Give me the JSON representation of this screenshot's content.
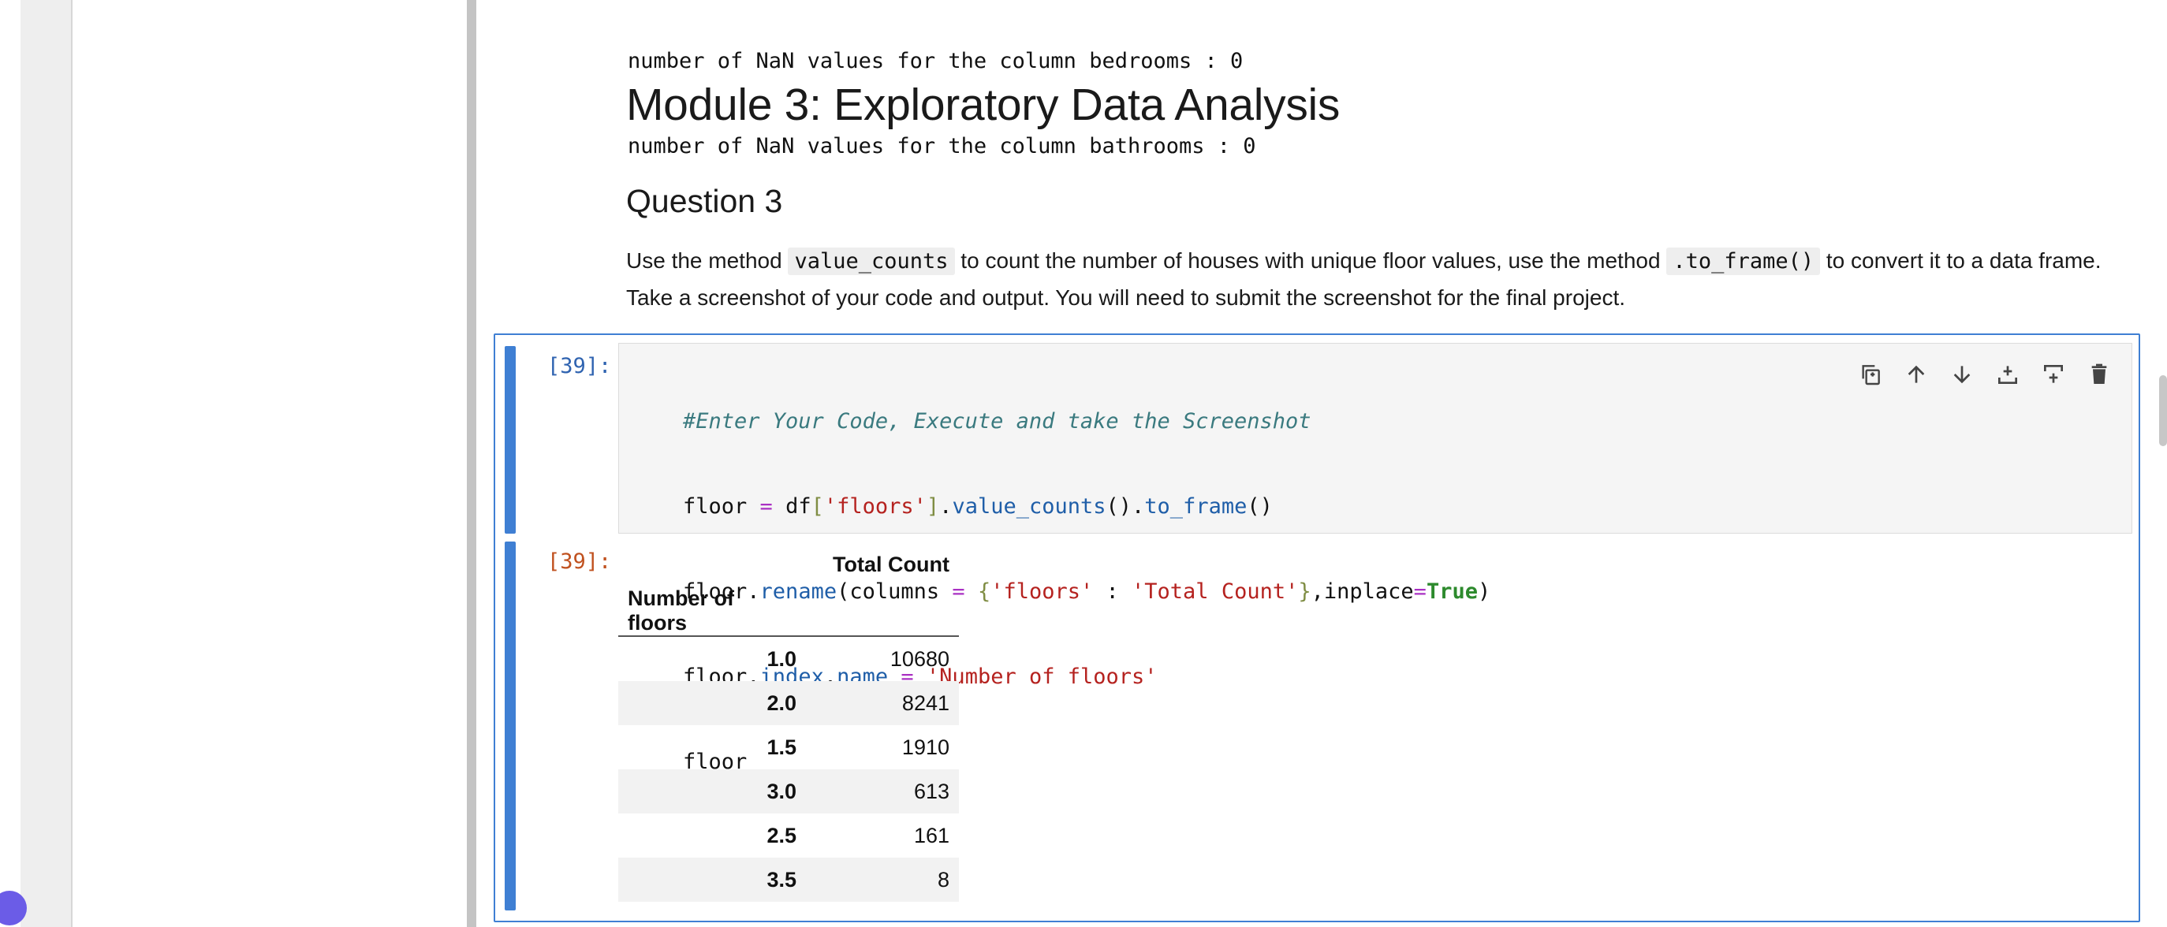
{
  "previous_output": {
    "lines": [
      "number of NaN values for the column bedrooms : 0",
      "number of NaN values for the column bathrooms : 0"
    ]
  },
  "markdown": {
    "module_heading": "Module 3: Exploratory Data Analysis",
    "question_heading": "Question 3",
    "instructions": {
      "part1": "Use the method ",
      "code1": "value_counts",
      "part2": " to count the number of houses with unique floor values, use the method ",
      "code2": ".to_frame()",
      "part3": " to convert it to a data frame. Take a screenshot of your code and output. You will need to submit the screenshot for the final project."
    }
  },
  "cell": {
    "input_prompt": "[39]:",
    "output_prompt": "[39]:",
    "code": {
      "line1_comment": "#Enter Your Code, Execute and take the Screenshot",
      "line2": {
        "a": "floor ",
        "b": "=",
        "c": " df",
        "d": "[",
        "e": "'floors'",
        "f": "]",
        "g": ".",
        "h": "value_counts",
        "i": "().",
        "j": "to_frame",
        "k": "()"
      },
      "line3": {
        "a": "floor.",
        "b": "rename",
        "c": "(columns ",
        "d": "=",
        "e": " ",
        "f": "{",
        "g": "'floors'",
        "h": " : ",
        "i": "'Total Count'",
        "j": "}",
        "k": ",inplace",
        "l": "=",
        "m": "True",
        "n": ")"
      },
      "line4": {
        "a": "floor.",
        "b": "index",
        "c": ".",
        "d": "name",
        "e": " ",
        "f": "=",
        "g": " ",
        "h": "'Number of floors'"
      },
      "line5": "floor"
    },
    "toolbar": {
      "icons": [
        "duplicate-icon",
        "move-up-icon",
        "move-down-icon",
        "insert-above-icon",
        "insert-below-icon",
        "delete-icon"
      ]
    }
  },
  "dataframe": {
    "column_header": "Total Count",
    "index_name": "Number of floors",
    "rows": [
      {
        "index": "1.0",
        "value": "10680"
      },
      {
        "index": "2.0",
        "value": "8241"
      },
      {
        "index": "1.5",
        "value": "1910"
      },
      {
        "index": "3.0",
        "value": "613"
      },
      {
        "index": "2.5",
        "value": "161"
      },
      {
        "index": "3.5",
        "value": "8"
      }
    ]
  },
  "colors": {
    "accent": "#3f7fd3",
    "prompt_input": "#2f63b0",
    "prompt_output": "#c0511f"
  }
}
